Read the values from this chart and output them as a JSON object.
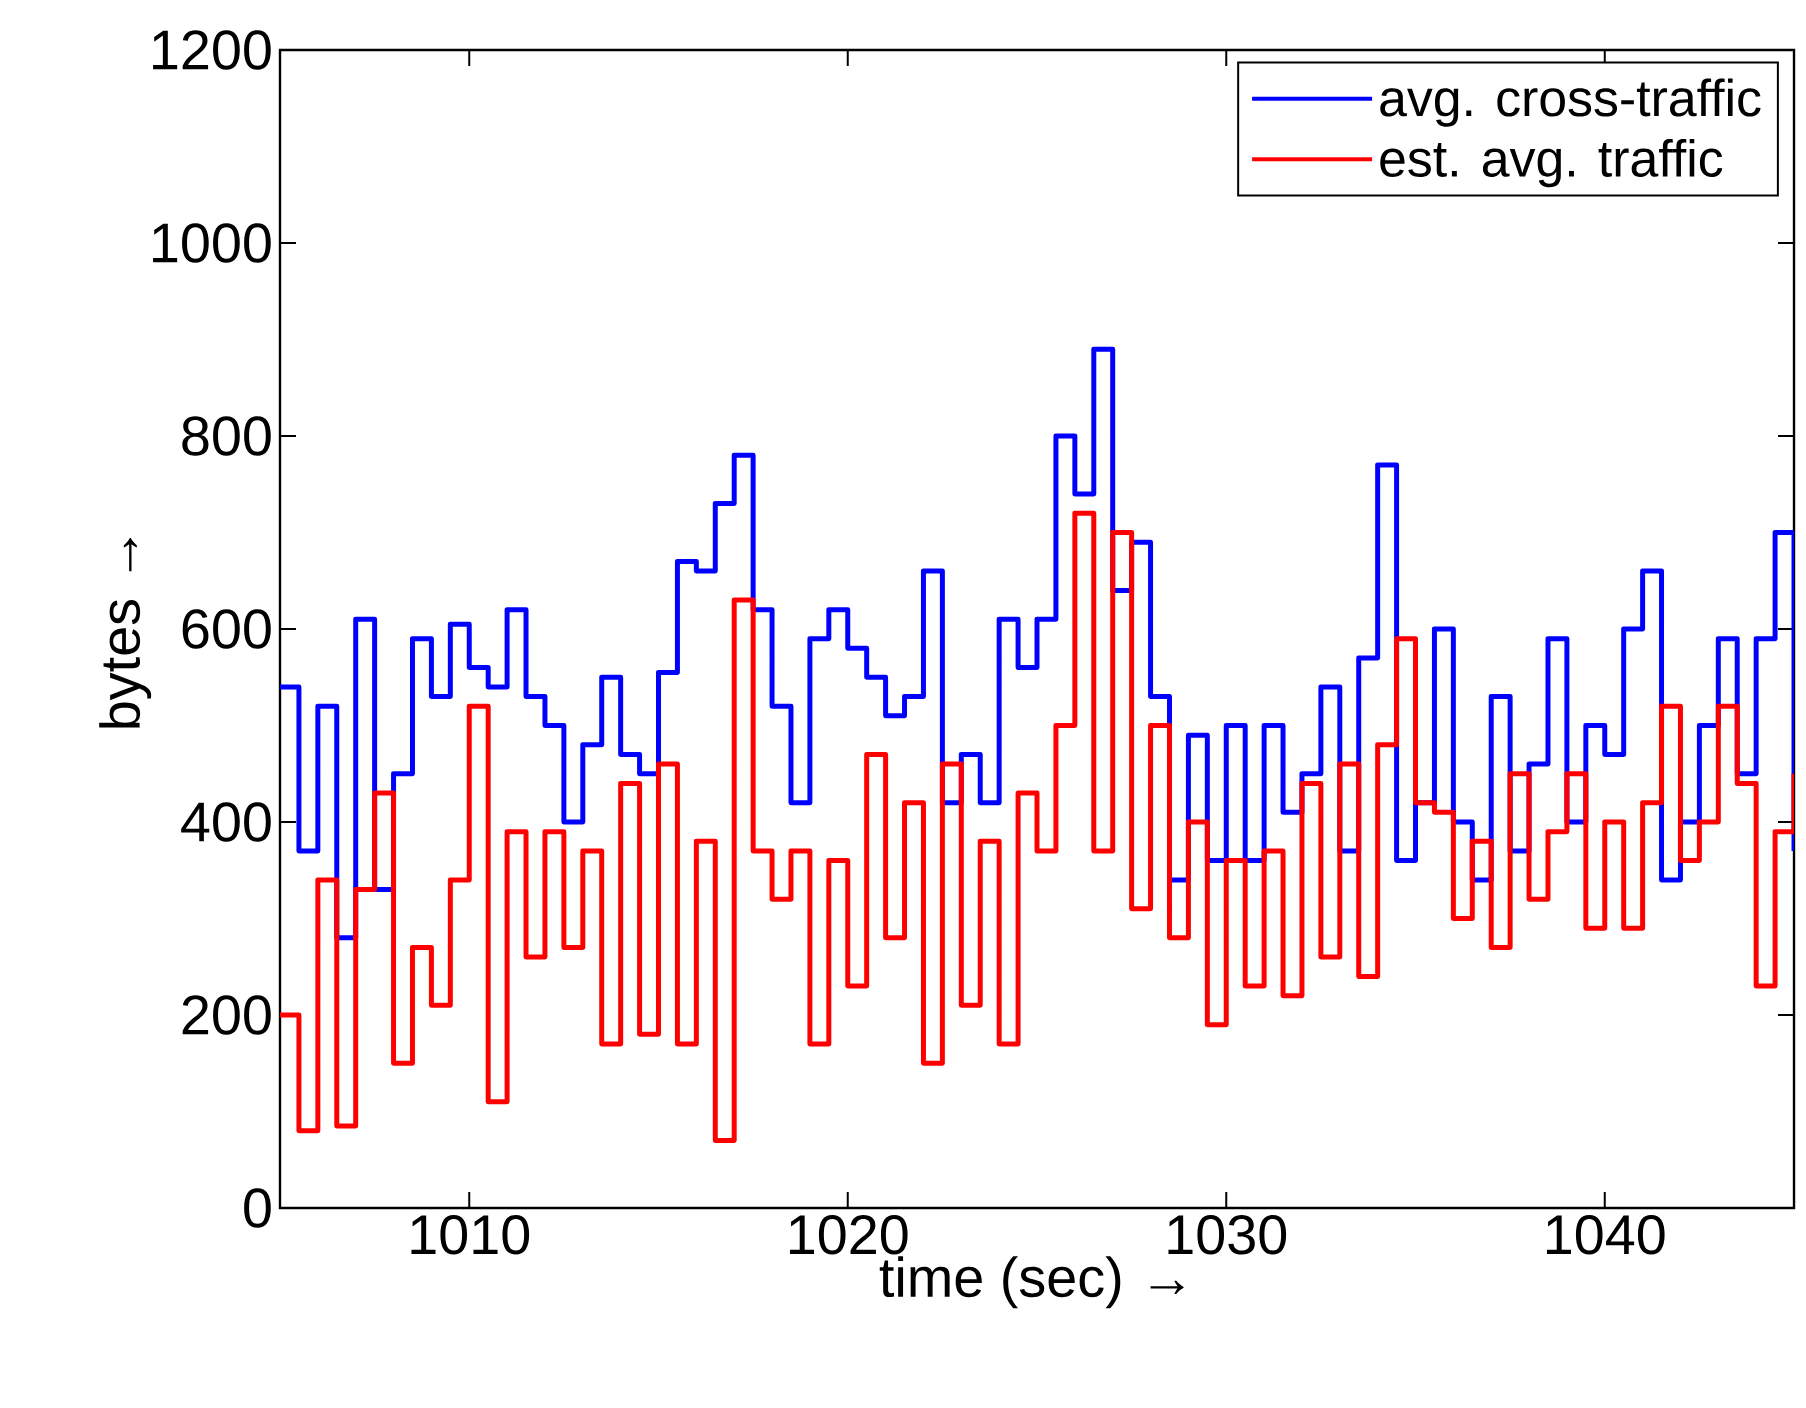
{
  "chart_data": {
    "type": "step",
    "xlabel": "time (sec) →",
    "ylabel": "bytes →",
    "x": [
      1005.0,
      1005.5,
      1006.0,
      1006.5,
      1007.0,
      1007.5,
      1008.0,
      1008.5,
      1009.0,
      1009.5,
      1010.0,
      1010.5,
      1011.0,
      1011.5,
      1012.0,
      1012.5,
      1013.0,
      1013.5,
      1014.0,
      1014.5,
      1015.0,
      1015.5,
      1016.0,
      1016.5,
      1017.0,
      1017.5,
      1018.0,
      1018.5,
      1019.0,
      1019.5,
      1020.0,
      1020.5,
      1021.0,
      1021.5,
      1022.0,
      1022.5,
      1023.0,
      1023.5,
      1024.0,
      1024.5,
      1025.0,
      1025.5,
      1026.0,
      1026.5,
      1027.0,
      1027.5,
      1028.0,
      1028.5,
      1029.0,
      1029.5,
      1030.0,
      1030.5,
      1031.0,
      1031.5,
      1032.0,
      1032.5,
      1033.0,
      1033.5,
      1034.0,
      1034.5,
      1035.0,
      1035.5,
      1036.0,
      1036.5,
      1037.0,
      1037.5,
      1038.0,
      1038.5,
      1039.0,
      1039.5,
      1040.0,
      1040.5,
      1041.0,
      1041.5,
      1042.0,
      1042.5,
      1043.0,
      1043.5,
      1044.0,
      1044.5,
      1045.0
    ],
    "series": [
      {
        "name": "avg. cross-traffic",
        "color": "#0000ff",
        "values": [
          540,
          370,
          520,
          280,
          610,
          330,
          450,
          590,
          530,
          605,
          560,
          540,
          620,
          530,
          500,
          400,
          480,
          550,
          470,
          450,
          555,
          670,
          660,
          730,
          780,
          620,
          520,
          420,
          590,
          620,
          580,
          550,
          510,
          530,
          660,
          420,
          470,
          420,
          610,
          560,
          610,
          800,
          740,
          890,
          640,
          690,
          530,
          340,
          490,
          360,
          500,
          360,
          500,
          410,
          450,
          540,
          370,
          570,
          770,
          360,
          420,
          600,
          400,
          340,
          530,
          370,
          460,
          590,
          400,
          500,
          470,
          600,
          660,
          340,
          400,
          500,
          590,
          450,
          590,
          700,
          370
        ]
      },
      {
        "name": "est. avg. traffic",
        "color": "#ff0000",
        "values": [
          200,
          80,
          340,
          85,
          330,
          430,
          150,
          270,
          210,
          340,
          520,
          110,
          390,
          260,
          390,
          270,
          370,
          170,
          440,
          180,
          460,
          170,
          380,
          70,
          630,
          370,
          320,
          370,
          170,
          360,
          230,
          470,
          280,
          420,
          150,
          460,
          210,
          380,
          170,
          430,
          370,
          500,
          720,
          370,
          700,
          310,
          500,
          280,
          400,
          190,
          360,
          230,
          370,
          220,
          440,
          260,
          460,
          240,
          480,
          590,
          420,
          410,
          300,
          380,
          270,
          450,
          320,
          390,
          450,
          290,
          400,
          290,
          420,
          520,
          360,
          400,
          520,
          440,
          230,
          390,
          450
        ]
      }
    ],
    "xlim": [
      1005,
      1045
    ],
    "ylim": [
      0,
      1200
    ],
    "xticks": [
      1010,
      1020,
      1030,
      1040
    ],
    "yticks": [
      0,
      200,
      400,
      600,
      800,
      1000,
      1200
    ],
    "legend": "top right",
    "line_style": "solid",
    "grid": false
  }
}
